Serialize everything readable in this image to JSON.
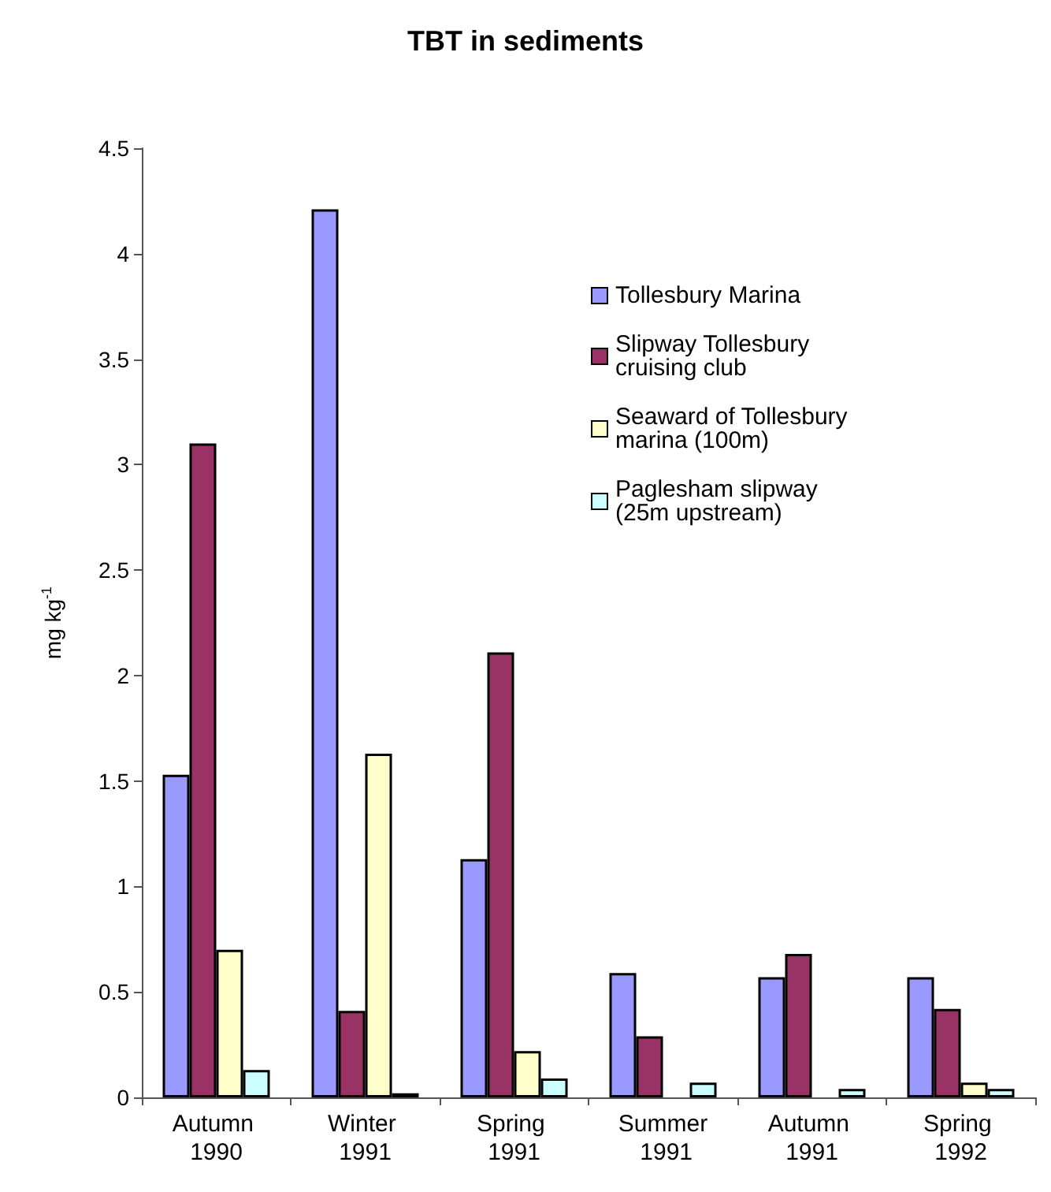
{
  "chart_data": {
    "type": "bar",
    "title": "TBT in sediments",
    "ylabel": "mg kg$^{-1}$",
    "categories": [
      "Autumn 1990",
      "Winter 1991",
      "Spring 1991",
      "Summer 1991",
      "Autumn 1991",
      "Spring 1992"
    ],
    "series": [
      {
        "name": "Tollesbury Marina",
        "color": "#9999ff",
        "values": [
          1.53,
          4.21,
          1.13,
          0.59,
          0.57,
          0.57
        ]
      },
      {
        "name": "Slipway Tollesbury cruising club",
        "color": "#993366",
        "values": [
          3.1,
          0.41,
          2.11,
          0.29,
          0.68,
          0.42
        ]
      },
      {
        "name": "Seaward of Tollesbury marina (100m)",
        "color": "#ffffcc",
        "values": [
          0.7,
          1.63,
          0.22,
          0,
          0,
          0.07
        ]
      },
      {
        "name": "Paglesham slipway (25m upstream)",
        "color": "#ccffff",
        "values": [
          0.13,
          0.02,
          0.09,
          0.07,
          0.04,
          0.04
        ]
      }
    ],
    "ylim": [
      0,
      4.5
    ],
    "yticks": [
      0,
      0.5,
      1,
      1.5,
      2,
      2.5,
      3,
      3.5,
      4,
      4.5
    ],
    "grid": false,
    "legend": "top right"
  }
}
